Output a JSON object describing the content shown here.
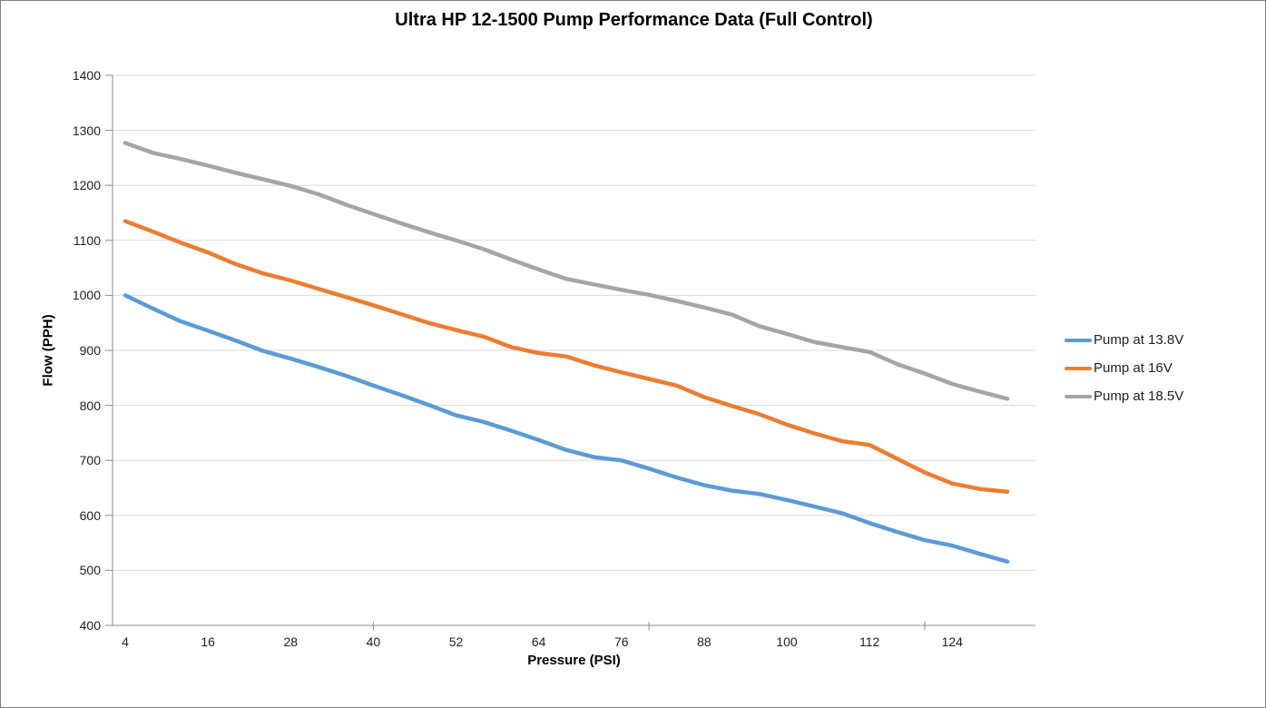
{
  "chart_data": {
    "type": "line",
    "title": "Ultra HP 12-1500 Pump Performance Data (Full Control)",
    "xlabel": "Pressure (PSI)",
    "ylabel": "Flow (PPH)",
    "ylim": [
      400,
      1400
    ],
    "y_ticks": [
      400,
      500,
      600,
      700,
      800,
      900,
      1000,
      1100,
      1200,
      1300,
      1400
    ],
    "x_tick_labels": [
      4,
      16,
      28,
      40,
      52,
      64,
      76,
      88,
      100,
      112,
      124
    ],
    "x_tick_marks": [
      40,
      80,
      120
    ],
    "grid": "horizontal",
    "legend_position": "right",
    "x": [
      4,
      8,
      12,
      16,
      20,
      24,
      28,
      32,
      36,
      40,
      44,
      48,
      52,
      56,
      60,
      64,
      68,
      72,
      76,
      80,
      84,
      88,
      92,
      96,
      100,
      104,
      108,
      112,
      116,
      120,
      124,
      128,
      132
    ],
    "series": [
      {
        "name": "Pump at 13.8V",
        "color": "#5B9BD5",
        "values": [
          1000,
          976,
          953,
          936,
          918,
          899,
          885,
          870,
          854,
          836,
          819,
          801,
          782,
          770,
          754,
          737,
          719,
          706,
          700,
          685,
          669,
          655,
          645,
          639,
          628,
          616,
          604,
          586,
          570,
          555,
          545,
          530,
          516
        ]
      },
      {
        "name": "Pump at 16V",
        "color": "#ED7D31",
        "values": [
          1135,
          1116,
          1096,
          1078,
          1057,
          1040,
          1027,
          1012,
          997,
          982,
          966,
          950,
          937,
          925,
          906,
          895,
          889,
          873,
          860,
          848,
          836,
          815,
          799,
          784,
          765,
          749,
          735,
          728,
          703,
          678,
          658,
          648,
          643
        ]
      },
      {
        "name": "Pump at 18.5V",
        "color": "#A5A5A5",
        "values": [
          1277,
          1259,
          1248,
          1236,
          1223,
          1211,
          1199,
          1184,
          1165,
          1148,
          1131,
          1115,
          1100,
          1084,
          1065,
          1047,
          1030,
          1020,
          1010,
          1001,
          990,
          978,
          965,
          944,
          930,
          915,
          906,
          897,
          875,
          858,
          839,
          825,
          812
        ]
      }
    ],
    "styles": {
      "gridline_color": "#D9D9D9",
      "axis_color": "#8C8C8C",
      "tick_label_color": "#1f1f1f",
      "line_width": 4.5
    }
  }
}
